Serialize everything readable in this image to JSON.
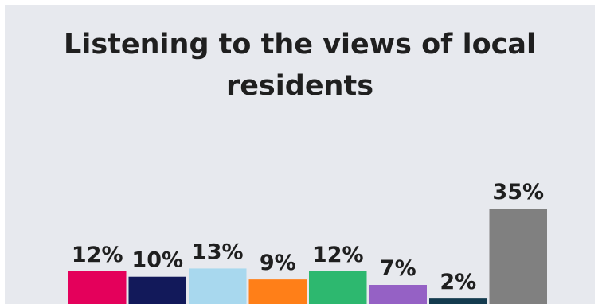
{
  "chart_data": {
    "type": "bar",
    "title": "Listening to the views of local residents",
    "xlabel": "",
    "ylabel": "",
    "ylim": [
      0,
      35
    ],
    "grid": false,
    "legend": "none",
    "values": [
      12,
      10,
      13,
      9,
      12,
      7,
      2,
      35
    ],
    "value_labels": [
      "12%",
      "10%",
      "13%",
      "9%",
      "12%",
      "7%",
      "2%",
      "35%"
    ],
    "colors": [
      "#e4005b",
      "#12195a",
      "#a8d8ee",
      "#ff7f18",
      "#2db86f",
      "#9561c5",
      "#143b4f",
      "#808080"
    ]
  }
}
